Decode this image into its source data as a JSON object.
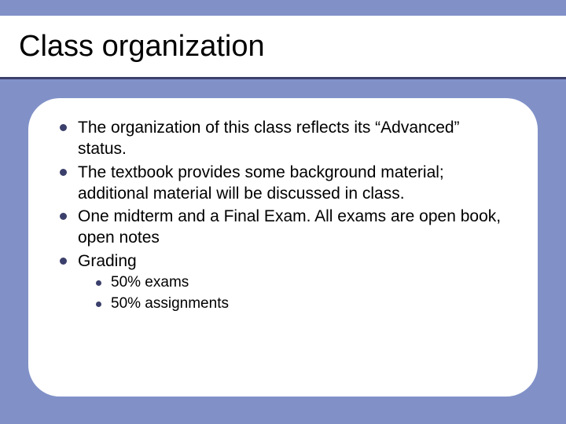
{
  "colors": {
    "background": "#8191c8",
    "panel": "#ffffff",
    "title_bar": "#ffffff",
    "underline": "#3b3f6b",
    "bullet": "#3b3f6b",
    "text": "#000000"
  },
  "typography": {
    "title_fontsize": 38,
    "body_fontsize": 21,
    "sub_fontsize": 19,
    "font_family": "Arial"
  },
  "layout": {
    "slide_width": 720,
    "slide_height": 540,
    "panel_border_radius": 40
  },
  "title": "Class organization",
  "bullets": [
    {
      "text": "The organization of this class reflects its “Advanced” status."
    },
    {
      "text": "The textbook provides some background material; additional material will be discussed in class."
    },
    {
      "text": "One midterm and a Final Exam. All exams are open book, open notes"
    },
    {
      "text": "Grading",
      "sub": [
        {
          "text": "50% exams"
        },
        {
          "text": "50% assignments"
        }
      ]
    }
  ]
}
